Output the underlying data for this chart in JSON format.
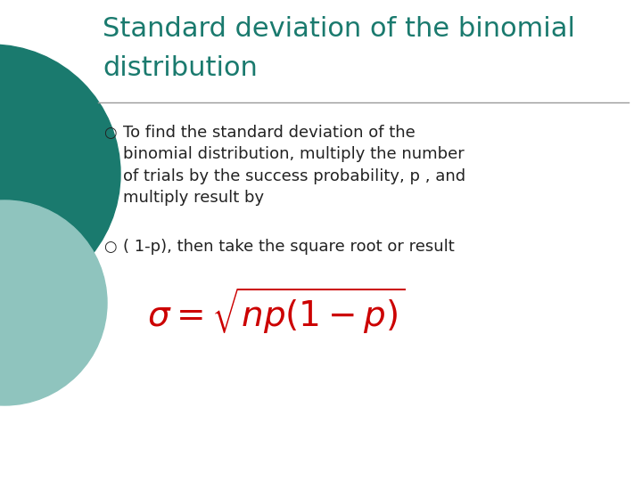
{
  "background_color": "#ffffff",
  "title_line1": "Standard deviation of the binomial",
  "title_line2": "distribution",
  "title_color": "#1a7a6e",
  "title_fontsize": 22,
  "divider_color": "#999999",
  "bullet_color": "#222222",
  "bullet_symbol": "○",
  "bullet1_lines": [
    "To find the standard deviation of the",
    "binomial distribution, multiply the number",
    "of trials by the success probability, p , and",
    "multiply result by"
  ],
  "bullet2_text": "( 1-p), then take the square root or result",
  "bullet_fontsize": 13,
  "formula_color": "#cc0000",
  "formula_text": "$\\sigma=\\sqrt{np(1-p)}$",
  "formula_fontsize": 28,
  "circle_color1": "#1a7a6e",
  "circle_color2": "#8fc4be",
  "fig_width": 7.2,
  "fig_height": 5.4
}
